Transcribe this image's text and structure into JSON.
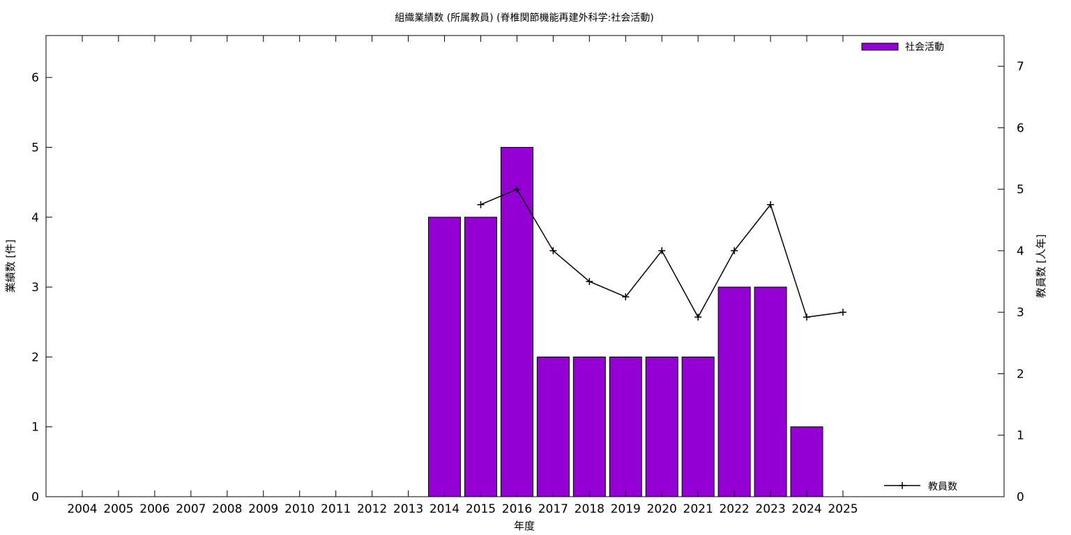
{
  "chart_data": {
    "type": "bar",
    "title": "組織業績数 (所属教員) (脊椎関節機能再建外科学:社会活動)",
    "xlabel": "年度",
    "ylabel_left": "業績数 [件]",
    "ylabel_right": "教員数 [人年]",
    "categories": [
      "2004",
      "2005",
      "2006",
      "2007",
      "2008",
      "2009",
      "2010",
      "2011",
      "2012",
      "2013",
      "2014",
      "2015",
      "2016",
      "2017",
      "2018",
      "2019",
      "2020",
      "2021",
      "2022",
      "2023",
      "2024",
      "2025"
    ],
    "ylim_left": [
      0,
      6.6
    ],
    "ylim_right": [
      0,
      7.5
    ],
    "yticks_left": [
      0,
      1,
      2,
      3,
      4,
      5,
      6
    ],
    "yticks_right": [
      0,
      1,
      2,
      3,
      4,
      5,
      6,
      7
    ],
    "grid": false,
    "series": [
      {
        "name": "社会活動",
        "kind": "bar",
        "axis": "left",
        "color": "#9400d3",
        "values": [
          null,
          null,
          null,
          null,
          null,
          null,
          null,
          null,
          null,
          null,
          4,
          4,
          5,
          2,
          2,
          2,
          2,
          2,
          3,
          3,
          1,
          null
        ]
      },
      {
        "name": "教員数",
        "kind": "line",
        "axis": "right",
        "color": "#000000",
        "marker": "plus",
        "values": [
          null,
          null,
          null,
          null,
          null,
          null,
          null,
          null,
          null,
          null,
          null,
          4.75,
          5,
          4,
          3.5,
          3.25,
          4,
          2.92,
          4,
          4.75,
          2.92,
          3
        ]
      }
    ],
    "legend": {
      "bar_position": "top-right",
      "line_position": "bottom-right"
    }
  }
}
